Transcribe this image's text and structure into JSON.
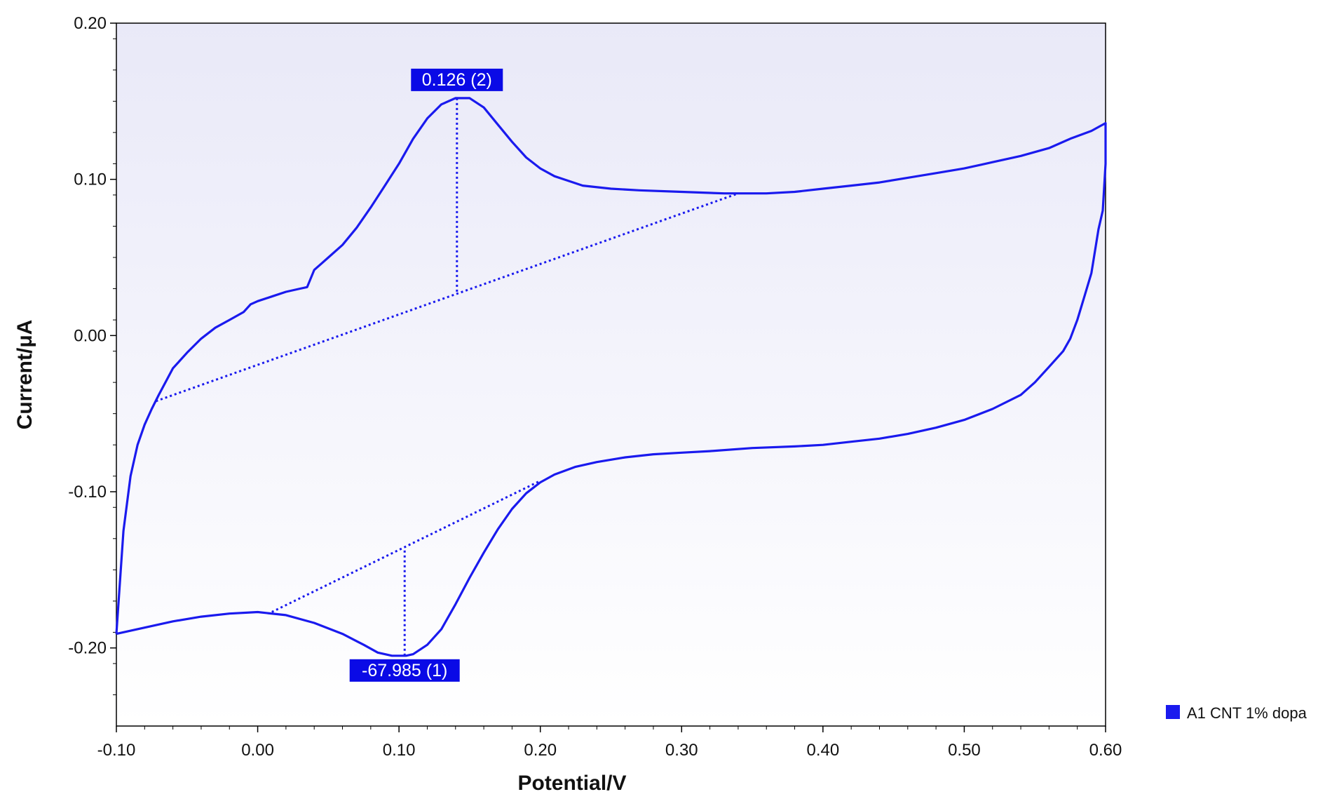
{
  "chart_data": {
    "type": "line",
    "title": "",
    "xlabel": "Potential/V",
    "ylabel": "Current/μA",
    "xlim": [
      -0.1,
      0.6
    ],
    "ylim": [
      -0.25,
      0.2
    ],
    "x_ticks": [
      "-0.10",
      "0.00",
      "0.10",
      "0.20",
      "0.30",
      "0.40",
      "0.50",
      "0.60"
    ],
    "y_ticks": [
      "0.20",
      "0.10",
      "0.00",
      "-0.10",
      "-0.20"
    ],
    "grid": false,
    "legend_position": "bottom-right, outside plot",
    "colors": {
      "series": "#1a1aee",
      "annotation_bg": "#0a0ae6",
      "plot_bg_top": "#e9e9f8",
      "plot_bg_bottom": "#ffffff"
    },
    "series": [
      {
        "name": "A1 CNT 1% dopa",
        "forward": [
          [
            -0.1,
            -0.191
          ],
          [
            -0.095,
            -0.125
          ],
          [
            -0.09,
            -0.09
          ],
          [
            -0.085,
            -0.07
          ],
          [
            -0.08,
            -0.057
          ],
          [
            -0.075,
            -0.047
          ],
          [
            -0.07,
            -0.038
          ],
          [
            -0.06,
            -0.021
          ],
          [
            -0.05,
            -0.011
          ],
          [
            -0.04,
            -0.002
          ],
          [
            -0.03,
            0.005
          ],
          [
            -0.02,
            0.01
          ],
          [
            -0.01,
            0.015
          ],
          [
            -0.005,
            0.02
          ],
          [
            0.0,
            0.022
          ],
          [
            0.01,
            0.025
          ],
          [
            0.02,
            0.028
          ],
          [
            0.03,
            0.03
          ],
          [
            0.035,
            0.031
          ],
          [
            0.04,
            0.042
          ],
          [
            0.045,
            0.046
          ],
          [
            0.05,
            0.05
          ],
          [
            0.06,
            0.058
          ],
          [
            0.07,
            0.069
          ],
          [
            0.08,
            0.082
          ],
          [
            0.09,
            0.096
          ],
          [
            0.1,
            0.11
          ],
          [
            0.11,
            0.126
          ],
          [
            0.12,
            0.139
          ],
          [
            0.13,
            0.148
          ],
          [
            0.14,
            0.152
          ],
          [
            0.15,
            0.152
          ],
          [
            0.16,
            0.146
          ],
          [
            0.17,
            0.135
          ],
          [
            0.18,
            0.124
          ],
          [
            0.19,
            0.114
          ],
          [
            0.2,
            0.107
          ],
          [
            0.21,
            0.102
          ],
          [
            0.22,
            0.099
          ],
          [
            0.23,
            0.096
          ],
          [
            0.25,
            0.094
          ],
          [
            0.27,
            0.093
          ],
          [
            0.3,
            0.092
          ],
          [
            0.33,
            0.091
          ],
          [
            0.36,
            0.091
          ],
          [
            0.38,
            0.092
          ],
          [
            0.4,
            0.094
          ],
          [
            0.42,
            0.096
          ],
          [
            0.44,
            0.098
          ],
          [
            0.46,
            0.101
          ],
          [
            0.48,
            0.104
          ],
          [
            0.5,
            0.107
          ],
          [
            0.52,
            0.111
          ],
          [
            0.54,
            0.115
          ],
          [
            0.56,
            0.12
          ],
          [
            0.575,
            0.126
          ],
          [
            0.59,
            0.131
          ],
          [
            0.6,
            0.136
          ]
        ],
        "reverse": [
          [
            0.6,
            0.136
          ],
          [
            0.6,
            0.11
          ],
          [
            0.598,
            0.08
          ],
          [
            0.595,
            0.068
          ],
          [
            0.59,
            0.04
          ],
          [
            0.585,
            0.025
          ],
          [
            0.58,
            0.01
          ],
          [
            0.575,
            -0.002
          ],
          [
            0.57,
            -0.01
          ],
          [
            0.56,
            -0.02
          ],
          [
            0.55,
            -0.03
          ],
          [
            0.54,
            -0.038
          ],
          [
            0.52,
            -0.047
          ],
          [
            0.5,
            -0.054
          ],
          [
            0.48,
            -0.059
          ],
          [
            0.46,
            -0.063
          ],
          [
            0.44,
            -0.066
          ],
          [
            0.42,
            -0.068
          ],
          [
            0.4,
            -0.07
          ],
          [
            0.38,
            -0.071
          ],
          [
            0.35,
            -0.072
          ],
          [
            0.32,
            -0.074
          ],
          [
            0.3,
            -0.075
          ],
          [
            0.28,
            -0.076
          ],
          [
            0.26,
            -0.078
          ],
          [
            0.24,
            -0.081
          ],
          [
            0.225,
            -0.084
          ],
          [
            0.21,
            -0.089
          ],
          [
            0.2,
            -0.094
          ],
          [
            0.19,
            -0.101
          ],
          [
            0.18,
            -0.111
          ],
          [
            0.17,
            -0.124
          ],
          [
            0.16,
            -0.139
          ],
          [
            0.15,
            -0.155
          ],
          [
            0.14,
            -0.172
          ],
          [
            0.13,
            -0.188
          ],
          [
            0.12,
            -0.198
          ],
          [
            0.11,
            -0.204
          ],
          [
            0.105,
            -0.205
          ],
          [
            0.095,
            -0.205
          ],
          [
            0.085,
            -0.203
          ],
          [
            0.075,
            -0.198
          ],
          [
            0.06,
            -0.191
          ],
          [
            0.04,
            -0.184
          ],
          [
            0.02,
            -0.179
          ],
          [
            0.0,
            -0.177
          ],
          [
            -0.02,
            -0.178
          ],
          [
            -0.04,
            -0.18
          ],
          [
            -0.06,
            -0.183
          ],
          [
            -0.08,
            -0.187
          ],
          [
            -0.1,
            -0.191
          ]
        ]
      }
    ],
    "baselines": [
      {
        "from": [
          -0.072,
          -0.042
        ],
        "to": [
          0.34,
          0.091
        ]
      },
      {
        "from": [
          0.01,
          -0.177
        ],
        "to": [
          0.2,
          -0.093
        ]
      }
    ],
    "peaks": [
      {
        "label": "0.126 (2)",
        "x": 0.141,
        "y_peak": 0.152,
        "y_base": 0.027,
        "label_side": "above"
      },
      {
        "label": "-67.985 (1)",
        "x": 0.104,
        "y_peak": -0.205,
        "y_base": -0.136,
        "label_side": "below"
      }
    ]
  }
}
